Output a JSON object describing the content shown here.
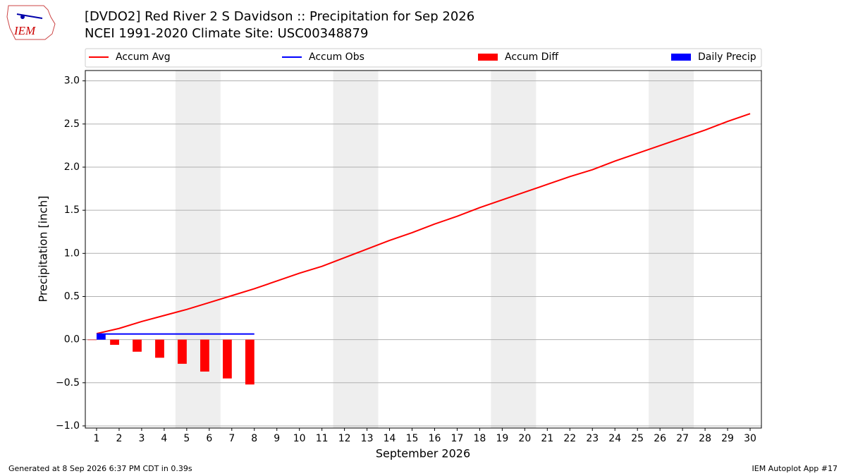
{
  "chart_data": {
    "type": "line",
    "logo": "IEM",
    "title": "[DVDO2] Red River 2 S Davidson :: Precipitation for Sep 2026",
    "subtitle": "NCEI 1991-2020 Climate Site: USC00348879",
    "x_label": "September 2026",
    "y_label": "Precipitation [inch]",
    "footer_left": "Generated at 8 Sep 2026 6:37 PM CDT in 0.39s",
    "footer_right": "IEM Autoplot App #17",
    "x": [
      1,
      2,
      3,
      4,
      5,
      6,
      7,
      8,
      9,
      10,
      11,
      12,
      13,
      14,
      15,
      16,
      17,
      18,
      19,
      20,
      21,
      22,
      23,
      24,
      25,
      26,
      27,
      28,
      29,
      30
    ],
    "xlim": [
      0.5,
      30.5
    ],
    "xticks": [
      1,
      2,
      3,
      4,
      5,
      6,
      7,
      8,
      9,
      10,
      11,
      12,
      13,
      14,
      15,
      16,
      17,
      18,
      19,
      20,
      21,
      22,
      23,
      24,
      25,
      26,
      27,
      28,
      29,
      30
    ],
    "ylim": [
      -1.025,
      3.12
    ],
    "yticks": [
      {
        "value": -1,
        "label": "−1.0"
      },
      {
        "value": -0.5,
        "label": "−0.5"
      },
      {
        "value": 0,
        "label": "0.0"
      },
      0.5,
      {
        "value": 1,
        "label": "1.0"
      },
      1.5,
      {
        "value": 2,
        "label": "2.0"
      },
      2.5,
      {
        "value": 3,
        "label": "3.0"
      }
    ],
    "grid": true,
    "weekend_spans": [
      [
        4.5,
        6.5
      ],
      [
        11.5,
        13.5
      ],
      [
        18.5,
        20.5
      ],
      [
        25.5,
        27.5
      ]
    ],
    "series": [
      {
        "name": "Accum Avg",
        "type": "line",
        "color": "#ff0000",
        "values": [
          0.07,
          0.13,
          0.21,
          0.28,
          0.35,
          0.43,
          0.51,
          0.59,
          0.68,
          0.77,
          0.85,
          0.95,
          1.05,
          1.15,
          1.24,
          1.34,
          1.43,
          1.53,
          1.62,
          1.71,
          1.8,
          1.89,
          1.97,
          2.07,
          2.16,
          2.25,
          2.34,
          2.43,
          2.53,
          2.62
        ]
      },
      {
        "name": "Accum Obs",
        "type": "line",
        "color": "#0000ff",
        "values": [
          0.065,
          0.065,
          0.065,
          0.065,
          0.065,
          0.065,
          0.065,
          0.065,
          null,
          null,
          null,
          null,
          null,
          null,
          null,
          null,
          null,
          null,
          null,
          null,
          null,
          null,
          null,
          null,
          null,
          null,
          null,
          null,
          null,
          null
        ]
      },
      {
        "name": "Accum Diff",
        "type": "bar",
        "color": "#ff0000",
        "values": [
          -0.005,
          -0.06,
          -0.14,
          -0.21,
          -0.28,
          -0.37,
          -0.45,
          -0.52,
          null,
          null,
          null,
          null,
          null,
          null,
          null,
          null,
          null,
          null,
          null,
          null,
          null,
          null,
          null,
          null,
          null,
          null,
          null,
          null,
          null,
          null
        ]
      },
      {
        "name": "Daily Precip",
        "type": "bar",
        "color": "#0000ff",
        "values": [
          0.065,
          0,
          0,
          0,
          0,
          0,
          0,
          0,
          null,
          null,
          null,
          null,
          null,
          null,
          null,
          null,
          null,
          null,
          null,
          null,
          null,
          null,
          null,
          null,
          null,
          null,
          null,
          null,
          null,
          null
        ]
      }
    ]
  }
}
